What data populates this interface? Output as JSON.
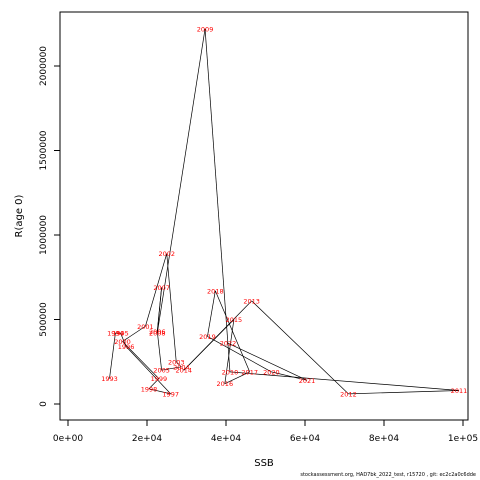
{
  "chart_data": {
    "type": "line",
    "xlabel": "SSB",
    "ylabel": "R(age 0)",
    "xlim": [
      0,
      100000
    ],
    "ylim": [
      0,
      2200000
    ],
    "x_ticks": [
      0,
      20000,
      40000,
      60000,
      80000,
      100000
    ],
    "x_tick_labels": [
      "0e+00",
      "2e+04",
      "4e+04",
      "6e+04",
      "8e+04",
      "1e+05"
    ],
    "y_ticks": [
      0,
      500000,
      1000000,
      1500000,
      2000000
    ],
    "y_tick_labels": [
      "0",
      "500000",
      "1000000",
      "1500000",
      "2000000"
    ],
    "grid": false,
    "points": [
      {
        "year": "1993",
        "x": 10500,
        "y": 150000
      },
      {
        "year": "1994",
        "x": 12000,
        "y": 420000
      },
      {
        "year": "1995",
        "x": 13300,
        "y": 420000
      },
      {
        "year": "1996",
        "x": 14700,
        "y": 340000
      },
      {
        "year": "1997",
        "x": 26000,
        "y": 60000
      },
      {
        "year": "1998",
        "x": 20500,
        "y": 90000
      },
      {
        "year": "1999",
        "x": 23000,
        "y": 150000
      },
      {
        "year": "2000",
        "x": 13800,
        "y": 370000
      },
      {
        "year": "2001",
        "x": 19600,
        "y": 460000
      },
      {
        "year": "2002",
        "x": 25000,
        "y": 890000
      },
      {
        "year": "2003",
        "x": 27400,
        "y": 250000
      },
      {
        "year": "2004",
        "x": 28700,
        "y": 220000
      },
      {
        "year": "2005",
        "x": 23700,
        "y": 200000
      },
      {
        "year": "2006",
        "x": 22600,
        "y": 430000
      },
      {
        "year": "2007",
        "x": 23700,
        "y": 690000
      },
      {
        "year": "2008",
        "x": 22600,
        "y": 420000
      },
      {
        "year": "2009",
        "x": 34700,
        "y": 2220000
      },
      {
        "year": "2010",
        "x": 41000,
        "y": 190000
      },
      {
        "year": "2011",
        "x": 99000,
        "y": 80000
      },
      {
        "year": "2012",
        "x": 71000,
        "y": 60000
      },
      {
        "year": "2013",
        "x": 46500,
        "y": 610000
      },
      {
        "year": "2014",
        "x": 29300,
        "y": 200000
      },
      {
        "year": "2015",
        "x": 42000,
        "y": 500000
      },
      {
        "year": "2016",
        "x": 39700,
        "y": 120000
      },
      {
        "year": "2017",
        "x": 46000,
        "y": 190000
      },
      {
        "year": "2018",
        "x": 37300,
        "y": 670000
      },
      {
        "year": "2019",
        "x": 35300,
        "y": 400000
      },
      {
        "year": "2020",
        "x": 51500,
        "y": 190000
      },
      {
        "year": "2021",
        "x": 60500,
        "y": 140000
      },
      {
        "year": "2022",
        "x": 40500,
        "y": 360000
      }
    ]
  },
  "footer_text": "stockassessment.org, HAD7bk_2022_test, r15720 , git: ec2c2a0c6dde"
}
